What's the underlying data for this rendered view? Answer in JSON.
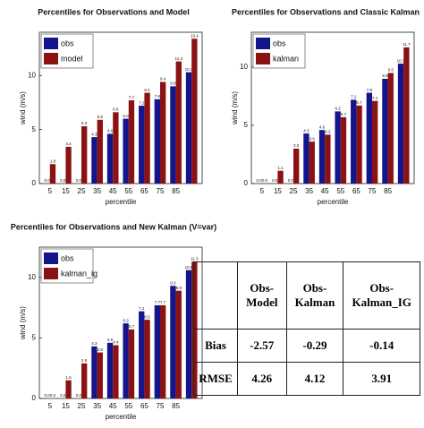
{
  "chart_data": [
    {
      "type": "bar",
      "title": "Percentiles for Observations and Model",
      "xlabel": "percentile",
      "ylabel": "wind (m/s)",
      "categories": [
        "5",
        "15",
        "25",
        "35",
        "45",
        "55",
        "65",
        "75",
        "85",
        null
      ],
      "series": [
        {
          "name": "obs",
          "color": "#14148c",
          "values": [
            0.0,
            0.0,
            0.0,
            4.3,
            4.6,
            6.0,
            7.2,
            7.8,
            9.0,
            10.3
          ],
          "value_labels": [
            "0.0",
            "0.0",
            "0.0",
            "4.3",
            "4.6",
            "6.0",
            "7.2",
            "7.8",
            "9.0",
            "10.3"
          ]
        },
        {
          "name": "model",
          "color": "#8b1212",
          "values": [
            1.8,
            3.4,
            5.3,
            5.9,
            6.6,
            7.7,
            8.4,
            9.4,
            11.3,
            13.4
          ],
          "value_labels": [
            "1.8",
            "3.4",
            "5.3",
            "5.9",
            "6.6",
            "7.7",
            "8.4",
            "9.4",
            "11.3",
            "13.4"
          ]
        }
      ],
      "ylim": [
        0,
        14
      ],
      "yticks": [
        0,
        5,
        10
      ],
      "legend": "upper left"
    },
    {
      "type": "bar",
      "title": "Percentiles for Observations and Classic Kalman",
      "xlabel": "percentile",
      "ylabel": "wind (m/s)",
      "categories": [
        "5",
        "15",
        "25",
        "35",
        "45",
        "55",
        "65",
        "75",
        "85",
        null
      ],
      "series": [
        {
          "name": "obs",
          "color": "#14148c",
          "values": [
            0.0,
            0.0,
            0.0,
            4.3,
            4.6,
            6.2,
            7.2,
            7.8,
            9.0,
            10.3
          ],
          "value_labels": [
            "0.0",
            "0.0",
            "0.0",
            "4.3",
            "4.6",
            "6.2",
            "7.2",
            "7.8",
            "9.0",
            "10.3"
          ]
        },
        {
          "name": "kalman",
          "color": "#8b1212",
          "values": [
            0.0,
            1.1,
            3.0,
            3.6,
            4.2,
            5.7,
            6.7,
            7.1,
            9.5,
            11.7
          ],
          "value_labels": [
            "0.0",
            "1.1",
            "3.0",
            "3.6",
            "4.2",
            "5.7",
            "6.7",
            "7.1",
            "9.5",
            "11.7"
          ]
        }
      ],
      "ylim": [
        0,
        13
      ],
      "yticks": [
        0,
        5,
        10
      ],
      "legend": "upper left"
    },
    {
      "type": "bar",
      "title": "Percentiles for Observations and New Kalman (V=var)",
      "xlabel": "percentile",
      "ylabel": "wind (m/s)",
      "categories": [
        "5",
        "15",
        "25",
        "35",
        "45",
        "55",
        "65",
        "75",
        "85",
        null
      ],
      "series": [
        {
          "name": "obs",
          "color": "#14148c",
          "values": [
            0.0,
            0.0,
            0.0,
            4.3,
            4.6,
            6.2,
            7.2,
            7.7,
            9.3,
            10.6
          ],
          "value_labels": [
            "0.0",
            "0.0",
            "0.0",
            "4.3",
            "4.6",
            "6.2",
            "7.2",
            "7.7",
            "9.3",
            "10.6"
          ]
        },
        {
          "name": "kalman_ig",
          "color": "#8b1212",
          "values": [
            0.0,
            1.5,
            2.9,
            3.8,
            4.4,
            5.7,
            6.5,
            7.7,
            8.9,
            11.3
          ],
          "value_labels": [
            "0.0",
            "1.5",
            "2.9",
            "3.8",
            "4.4",
            "5.7",
            "6.5",
            "7.7",
            "8.9",
            "11.3"
          ]
        }
      ],
      "ylim": [
        0,
        12.5
      ],
      "yticks": [
        0,
        5,
        10
      ],
      "legend": "upper left"
    }
  ],
  "table": {
    "columns": [
      "Obs-Model",
      "Obs-Kalman",
      "Obs-Kalman_IG"
    ],
    "rows": [
      [
        "Bias",
        -2.57,
        -0.29,
        -0.14
      ],
      [
        "RMSE",
        4.26,
        4.12,
        3.91
      ]
    ]
  }
}
